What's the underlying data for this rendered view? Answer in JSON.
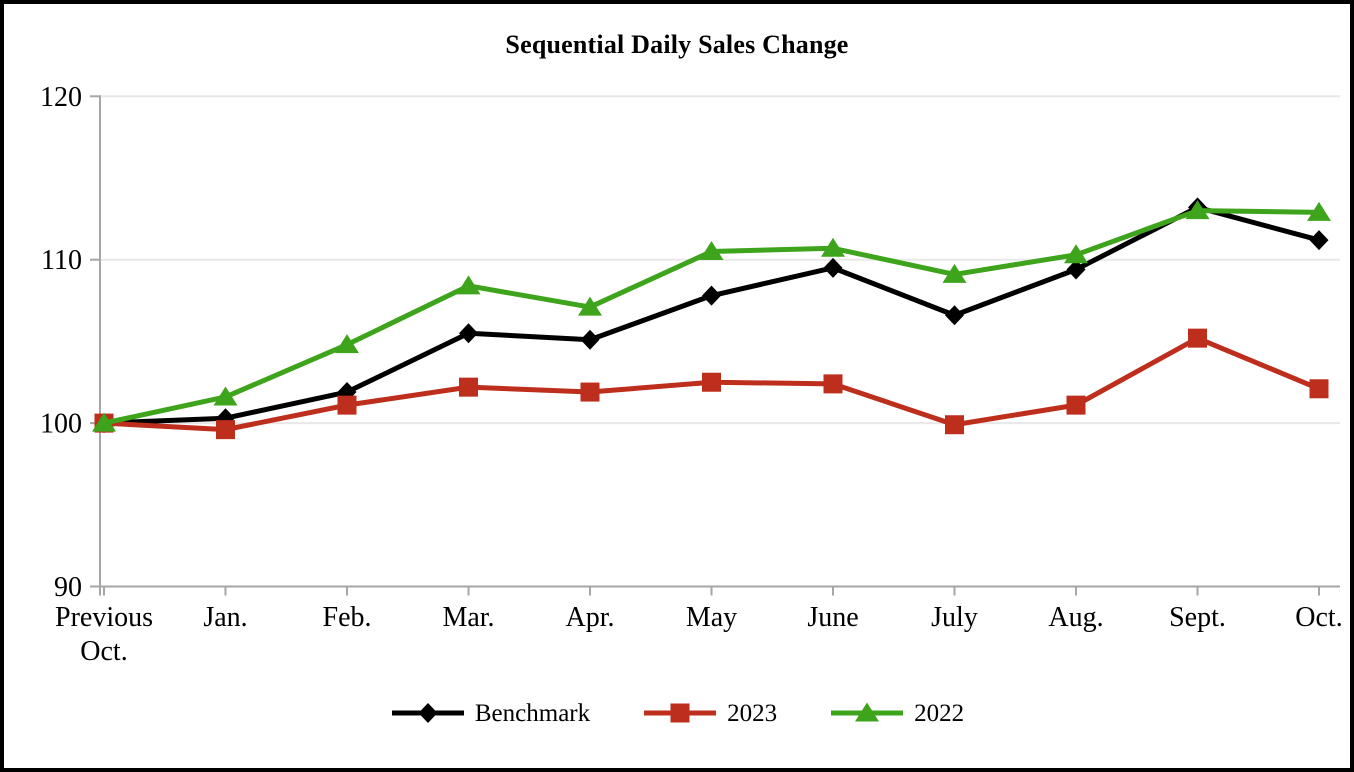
{
  "title": "Sequential Daily Sales Change",
  "chart_data": {
    "type": "line",
    "title": "Sequential Daily Sales Change",
    "categories": [
      "Previous\nOct.",
      "Jan.",
      "Feb.",
      "Mar.",
      "Apr.",
      "May",
      "June",
      "July",
      "Aug.",
      "Sept.",
      "Oct."
    ],
    "series": [
      {
        "name": "Benchmark",
        "color": "#000000",
        "marker": "diamond",
        "values": [
          100.0,
          100.3,
          101.9,
          105.5,
          105.1,
          107.8,
          109.5,
          106.6,
          109.4,
          113.2,
          111.2
        ]
      },
      {
        "name": "2023",
        "color": "#BE2E1D",
        "marker": "square",
        "values": [
          100.0,
          99.6,
          101.1,
          102.2,
          101.9,
          102.5,
          102.4,
          99.9,
          101.1,
          105.2,
          102.1
        ]
      },
      {
        "name": "2022",
        "color": "#3EA41C",
        "marker": "triangle",
        "values": [
          100.0,
          101.6,
          104.8,
          108.4,
          107.1,
          110.5,
          110.7,
          109.1,
          110.3,
          113.0,
          112.9
        ]
      }
    ],
    "ylim": [
      90,
      120
    ],
    "yticks": [
      90,
      100,
      110,
      120
    ],
    "xlabel": "",
    "ylabel": "",
    "grid": true,
    "legend_position": "bottom"
  },
  "colors": {
    "gridline": "#E8E8E8",
    "axis": "#A6A6A6",
    "text": "#000000",
    "background": "#FFFFFF"
  }
}
